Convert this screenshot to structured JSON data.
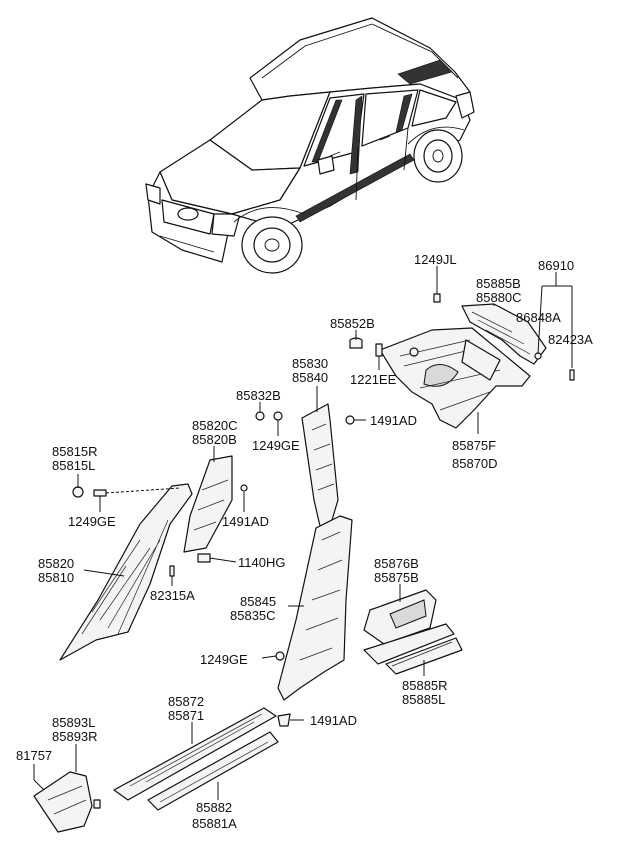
{
  "labels": {
    "l_1249JL": "1249JL",
    "l_85885B": "85885B",
    "l_85880C": "85880C",
    "l_86910": "86910",
    "l_86848A": "86848A",
    "l_82423A": "82423A",
    "l_85852B": "85852B",
    "l_1221EE": "1221EE",
    "l_85830": "85830",
    "l_85840": "85840",
    "l_85832B": "85832B",
    "l_1491AD_a": "1491AD",
    "l_1249GE_a": "1249GE",
    "l_85875F": "85875F",
    "l_85870D": "85870D",
    "l_85820C": "85820C",
    "l_85820B": "85820B",
    "l_85815R": "85815R",
    "l_85815L": "85815L",
    "l_1249GE_b": "1249GE",
    "l_1491AD_b": "1491AD",
    "l_85820": "85820",
    "l_85810": "85810",
    "l_1140HG": "1140HG",
    "l_82315A": "82315A",
    "l_85876B": "85876B",
    "l_85875B": "85875B",
    "l_85845": "85845",
    "l_85835C": "85835C",
    "l_1249GE_c": "1249GE",
    "l_85885R": "85885R",
    "l_85885L": "85885L",
    "l_85872": "85872",
    "l_85871": "85871",
    "l_1491AD_c": "1491AD",
    "l_85893L": "85893L",
    "l_85893R": "85893R",
    "l_81757": "81757",
    "l_85882": "85882",
    "l_85881A": "85881A"
  }
}
